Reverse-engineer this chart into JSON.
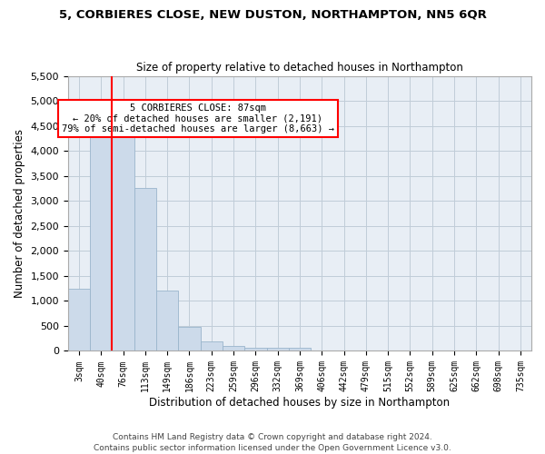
{
  "title": "5, CORBIERES CLOSE, NEW DUSTON, NORTHAMPTON, NN5 6QR",
  "subtitle": "Size of property relative to detached houses in Northampton",
  "xlabel": "Distribution of detached houses by size in Northampton",
  "ylabel": "Number of detached properties",
  "footnote": "Contains HM Land Registry data © Crown copyright and database right 2024.\nContains public sector information licensed under the Open Government Licence v3.0.",
  "bar_labels": [
    "3sqm",
    "40sqm",
    "76sqm",
    "113sqm",
    "149sqm",
    "186sqm",
    "223sqm",
    "259sqm",
    "296sqm",
    "332sqm",
    "369sqm",
    "406sqm",
    "442sqm",
    "479sqm",
    "515sqm",
    "552sqm",
    "589sqm",
    "625sqm",
    "662sqm",
    "698sqm",
    "735sqm"
  ],
  "bar_values": [
    1250,
    4300,
    4270,
    3250,
    1200,
    480,
    190,
    100,
    70,
    60,
    55,
    0,
    0,
    0,
    0,
    0,
    0,
    0,
    0,
    0,
    0
  ],
  "bar_color": "#ccdaea",
  "bar_edge_color": "#9ab5cc",
  "grid_color": "#c0ccd8",
  "background_color": "#e8eef5",
  "annotation_text": "5 CORBIERES CLOSE: 87sqm\n← 20% of detached houses are smaller (2,191)\n79% of semi-detached houses are larger (8,663) →",
  "red_line_bar_index": 2,
  "ylim": [
    0,
    5500
  ],
  "yticks": [
    0,
    500,
    1000,
    1500,
    2000,
    2500,
    3000,
    3500,
    4000,
    4500,
    5000,
    5500
  ]
}
